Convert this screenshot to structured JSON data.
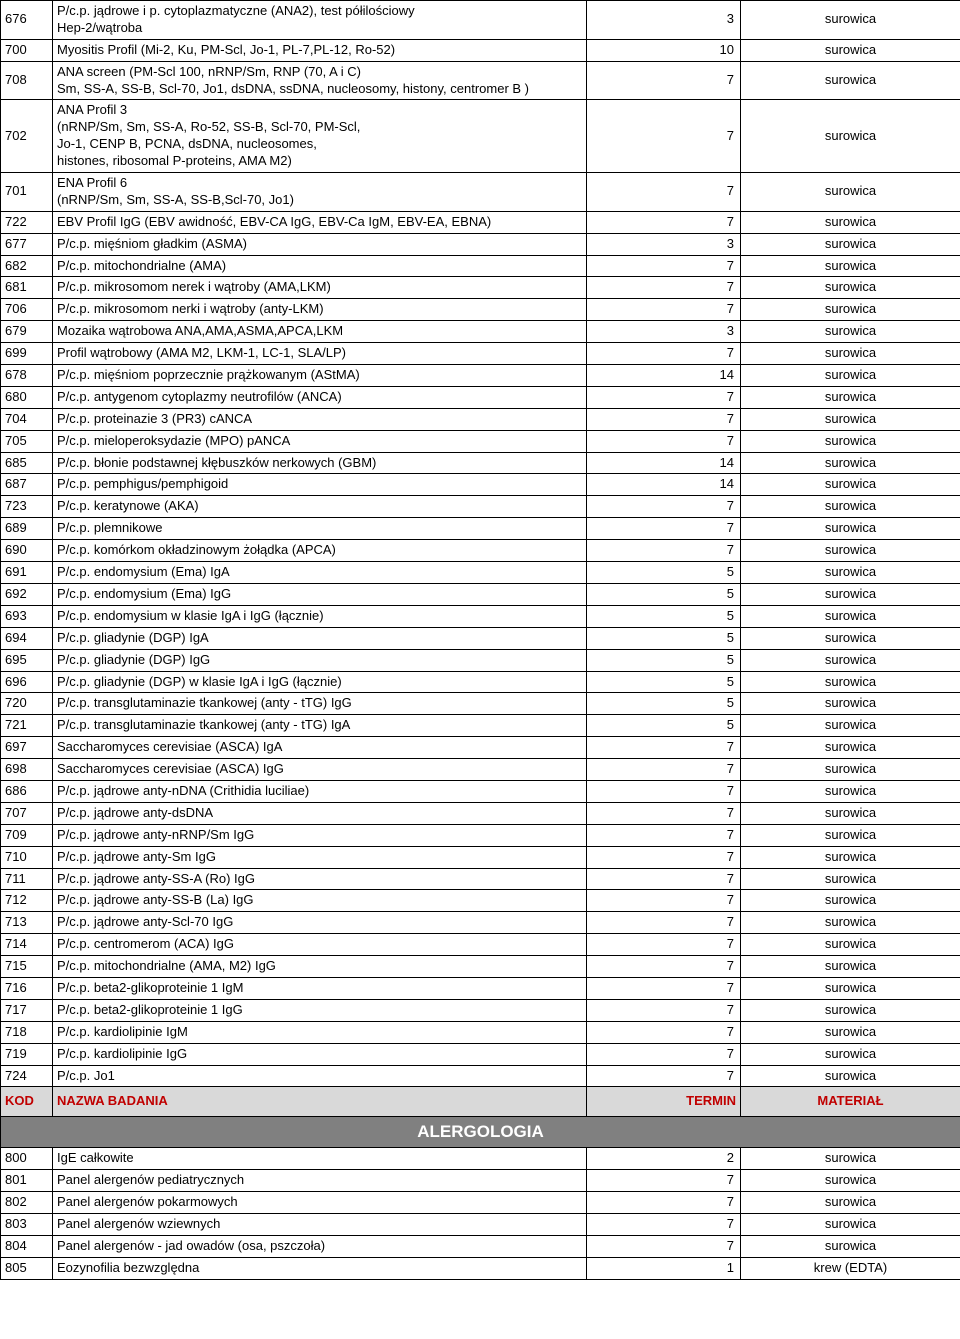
{
  "header": {
    "code": "KOD",
    "name": "NAZWA BADANIA",
    "days": "TERMIN",
    "material": "MATERIAŁ"
  },
  "section_title": "ALERGOLOGIA",
  "rows_top": [
    {
      "code": "676",
      "name": "P/c.p. jądrowe i p. cytoplazmatyczne (ANA2), test półilościowy\nHep-2/wątroba",
      "days": "3",
      "mat": "surowica"
    },
    {
      "code": "700",
      "name": "Myositis Profil (Mi-2, Ku, PM-Scl, Jo-1, PL-7,PL-12, Ro-52)",
      "days": "10",
      "mat": "surowica"
    },
    {
      "code": "708",
      "name": "ANA screen (PM-Scl 100, nRNP/Sm, RNP (70, A i C)\nSm, SS-A, SS-B, Scl-70, Jo1, dsDNA, ssDNA, nucleosomy, histony, centromer B )",
      "days": "7",
      "mat": "surowica"
    },
    {
      "code": "702",
      "name": "ANA Profil 3\n(nRNP/Sm, Sm, SS-A, Ro-52, SS-B, Scl-70, PM-Scl,\nJo-1, CENP B, PCNA, dsDNA, nucleosomes,\nhistones, ribosomal P-proteins, AMA M2)",
      "days": "7",
      "mat": "surowica"
    },
    {
      "code": "701",
      "name": "ENA Profil 6\n(nRNP/Sm, Sm, SS-A, SS-B,Scl-70, Jo1)",
      "days": "7",
      "mat": "surowica"
    },
    {
      "code": "722",
      "name": "EBV Profil IgG (EBV awidność, EBV-CA IgG, EBV-Ca IgM, EBV-EA, EBNA)",
      "days": "7",
      "mat": "surowica"
    },
    {
      "code": "677",
      "name": "P/c.p. mięśniom gładkim (ASMA)",
      "days": "3",
      "mat": "surowica"
    },
    {
      "code": "682",
      "name": "P/c.p. mitochondrialne (AMA)",
      "days": "7",
      "mat": "surowica"
    },
    {
      "code": "681",
      "name": "P/c.p. mikrosomom nerek i wątroby (AMA,LKM)",
      "days": "7",
      "mat": "surowica"
    },
    {
      "code": "706",
      "name": "P/c.p. mikrosomom nerki i wątroby (anty-LKM)",
      "days": "7",
      "mat": "surowica"
    },
    {
      "code": "679",
      "name": "Mozaika wątrobowa ANA,AMA,ASMA,APCA,LKM",
      "days": "3",
      "mat": "surowica"
    },
    {
      "code": "699",
      "name": "Profil wątrobowy (AMA M2, LKM-1, LC-1, SLA/LP)",
      "days": "7",
      "mat": "surowica"
    },
    {
      "code": "678",
      "name": "P/c.p. mięśniom poprzecznie prążkowanym (AStMA)",
      "days": "14",
      "mat": "surowica"
    },
    {
      "code": "680",
      "name": "P/c.p. antygenom cytoplazmy neutrofilów (ANCA)",
      "days": "7",
      "mat": "surowica"
    },
    {
      "code": "704",
      "name": "P/c.p. proteinazie 3 (PR3) cANCA",
      "days": "7",
      "mat": "surowica"
    },
    {
      "code": "705",
      "name": "P/c.p. mieloperoksydazie (MPO) pANCA",
      "days": "7",
      "mat": "surowica"
    },
    {
      "code": "685",
      "name": "P/c.p. błonie podstawnej kłębuszków nerkowych (GBM)",
      "days": "14",
      "mat": "surowica"
    },
    {
      "code": "687",
      "name": "P/c.p. pemphigus/pemphigoid",
      "days": "14",
      "mat": "surowica"
    },
    {
      "code": "723",
      "name": "P/c.p. keratynowe (AKA)",
      "days": "7",
      "mat": "surowica"
    },
    {
      "code": "689",
      "name": "P/c.p. plemnikowe",
      "days": "7",
      "mat": "surowica"
    },
    {
      "code": "690",
      "name": "P/c.p. komórkom okładzinowym żołądka (APCA)",
      "days": "7",
      "mat": "surowica"
    },
    {
      "code": "691",
      "name": "P/c.p. endomysium (Ema) IgA",
      "days": "5",
      "mat": "surowica"
    },
    {
      "code": "692",
      "name": "P/c.p. endomysium (Ema) IgG",
      "days": "5",
      "mat": "surowica"
    },
    {
      "code": "693",
      "name": "P/c.p. endomysium w klasie IgA i IgG (łącznie)",
      "days": "5",
      "mat": "surowica"
    },
    {
      "code": "694",
      "name": "P/c.p. gliadynie (DGP) IgA",
      "days": "5",
      "mat": "surowica"
    },
    {
      "code": "695",
      "name": "P/c.p. gliadynie (DGP) IgG",
      "days": "5",
      "mat": "surowica"
    },
    {
      "code": "696",
      "name": "P/c.p. gliadynie (DGP) w klasie IgA i IgG (łącznie)",
      "days": "5",
      "mat": "surowica"
    },
    {
      "code": "720",
      "name": "P/c.p. transglutaminazie tkankowej (anty - tTG) IgG",
      "days": "5",
      "mat": "surowica"
    },
    {
      "code": "721",
      "name": "P/c.p. transglutaminazie tkankowej (anty - tTG) IgA",
      "days": "5",
      "mat": "surowica"
    },
    {
      "code": "697",
      "name": "Saccharomyces cerevisiae (ASCA) IgA",
      "days": "7",
      "mat": "surowica"
    },
    {
      "code": "698",
      "name": "Saccharomyces cerevisiae (ASCA) IgG",
      "days": "7",
      "mat": "surowica"
    },
    {
      "code": "686",
      "name": "P/c.p. jądrowe anty-nDNA (Crithidia luciliae)",
      "days": "7",
      "mat": "surowica"
    },
    {
      "code": "707",
      "name": "P/c.p. jądrowe anty-dsDNA",
      "days": "7",
      "mat": "surowica"
    },
    {
      "code": "709",
      "name": "P/c.p. jądrowe anty-nRNP/Sm IgG",
      "days": "7",
      "mat": "surowica"
    },
    {
      "code": "710",
      "name": "P/c.p. jądrowe anty-Sm IgG",
      "days": "7",
      "mat": "surowica"
    },
    {
      "code": "711",
      "name": "P/c.p. jądrowe anty-SS-A (Ro) IgG",
      "days": "7",
      "mat": "surowica"
    },
    {
      "code": "712",
      "name": "P/c.p. jądrowe anty-SS-B (La) IgG",
      "days": "7",
      "mat": "surowica"
    },
    {
      "code": "713",
      "name": "P/c.p. jądrowe anty-Scl-70 IgG",
      "days": "7",
      "mat": "surowica"
    },
    {
      "code": "714",
      "name": "P/c.p. centromerom (ACA) IgG",
      "days": "7",
      "mat": "surowica"
    },
    {
      "code": "715",
      "name": "P/c.p. mitochondrialne (AMA, M2) IgG",
      "days": "7",
      "mat": "surowica"
    },
    {
      "code": "716",
      "name": "P/c.p. beta2-glikoproteinie 1 IgM",
      "days": "7",
      "mat": "surowica"
    },
    {
      "code": "717",
      "name": "P/c.p. beta2-glikoproteinie 1 IgG",
      "days": "7",
      "mat": "surowica"
    },
    {
      "code": "718",
      "name": "P/c.p. kardiolipinie IgM",
      "days": "7",
      "mat": "surowica"
    },
    {
      "code": "719",
      "name": "P/c.p. kardiolipinie IgG",
      "days": "7",
      "mat": "surowica"
    },
    {
      "code": "724",
      "name": "P/c.p. Jo1",
      "days": "7",
      "mat": "surowica"
    }
  ],
  "rows_bottom": [
    {
      "code": "800",
      "name": "IgE całkowite",
      "days": "2",
      "mat": "surowica"
    },
    {
      "code": "801",
      "name": "Panel alergenów pediatrycznych",
      "days": "7",
      "mat": "surowica"
    },
    {
      "code": "802",
      "name": "Panel alergenów pokarmowych",
      "days": "7",
      "mat": "surowica"
    },
    {
      "code": "803",
      "name": "Panel alergenów wziewnych",
      "days": "7",
      "mat": "surowica"
    },
    {
      "code": "804",
      "name": "Panel alergenów - jad owadów (osa, pszczoła)",
      "days": "7",
      "mat": "surowica"
    },
    {
      "code": "805",
      "name": "Eozynofilia bezwzględna",
      "days": "1",
      "mat": "krew (EDTA)"
    }
  ]
}
